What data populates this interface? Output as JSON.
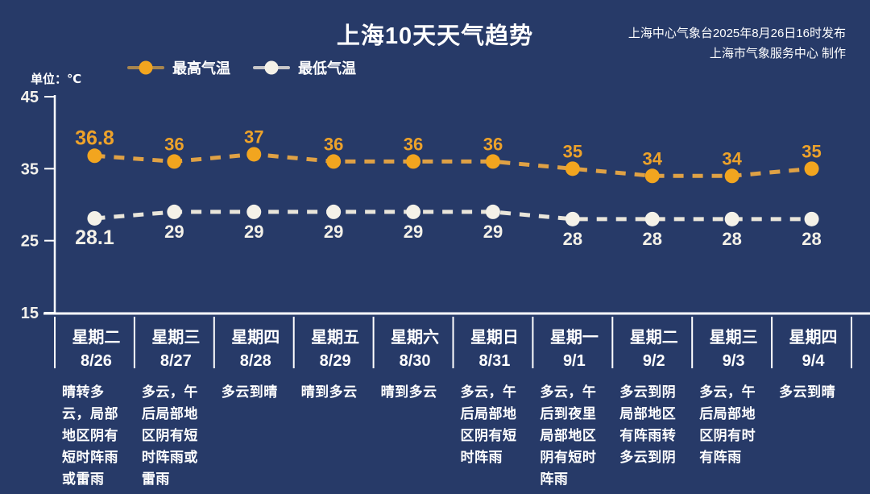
{
  "header": {
    "title": "上海10天天气趋势",
    "issuer_line1": "上海中心气象台2025年8月26日16时发布",
    "issuer_line2": "上海市气象服务中心 制作"
  },
  "unit_label": "单位：℃",
  "legend": {
    "high": {
      "label": "最高气温"
    },
    "low": {
      "label": "最低气温"
    }
  },
  "colors": {
    "background": "#273a68",
    "axis": "#ffffff",
    "tick_label": "#f3f1ec",
    "high_marker": "#f2a51f",
    "high_line": "#dfa145",
    "high_label": "#eda22a",
    "low_marker": "#f4f1e8",
    "low_line": "#e9e5da",
    "low_label": "#f4f1e8",
    "legend_high_line": "#a8854e",
    "legend_low_line": "#c8c7c9"
  },
  "chart_data": {
    "type": "line",
    "title": "上海10天天气趋势",
    "unit": "℃",
    "categories": [
      "8/26",
      "8/27",
      "8/28",
      "8/29",
      "8/30",
      "8/31",
      "9/1",
      "9/2",
      "9/3",
      "9/4"
    ],
    "weekdays": [
      "星期二",
      "星期三",
      "星期四",
      "星期五",
      "星期六",
      "星期日",
      "星期一",
      "星期二",
      "星期三",
      "星期四"
    ],
    "series": [
      {
        "name": "最高气温",
        "key": "high",
        "values": [
          36.8,
          36,
          37,
          36,
          36,
          36,
          35,
          34,
          34,
          35
        ]
      },
      {
        "name": "最低气温",
        "key": "low",
        "values": [
          28.1,
          29,
          29,
          29,
          29,
          29,
          28,
          28,
          28,
          28
        ]
      }
    ],
    "ylim": [
      15,
      45
    ],
    "yticks": [
      45,
      35,
      25,
      15
    ],
    "line_style": "dashed",
    "legend_position": "top",
    "grid": false
  },
  "forecast": [
    {
      "weekday": "星期二",
      "date": "8/26",
      "description": "晴转多云，局部地区阴有短时阵雨或雷雨"
    },
    {
      "weekday": "星期三",
      "date": "8/27",
      "description": "多云，午后局部地区阴有短时阵雨或雷雨"
    },
    {
      "weekday": "星期四",
      "date": "8/28",
      "description": "多云到晴"
    },
    {
      "weekday": "星期五",
      "date": "8/29",
      "description": "晴到多云"
    },
    {
      "weekday": "星期六",
      "date": "8/30",
      "description": "晴到多云"
    },
    {
      "weekday": "星期日",
      "date": "8/31",
      "description": "多云，午后局部地区阴有短时阵雨"
    },
    {
      "weekday": "星期一",
      "date": "9/1",
      "description": "多云，午后到夜里局部地区阴有短时阵雨"
    },
    {
      "weekday": "星期二",
      "date": "9/2",
      "description": "多云到阴局部地区有阵雨转多云到阴"
    },
    {
      "weekday": "星期三",
      "date": "9/3",
      "description": "多云，午后局部地区阴有时有阵雨"
    },
    {
      "weekday": "星期四",
      "date": "9/4",
      "description": "多云到晴"
    }
  ]
}
